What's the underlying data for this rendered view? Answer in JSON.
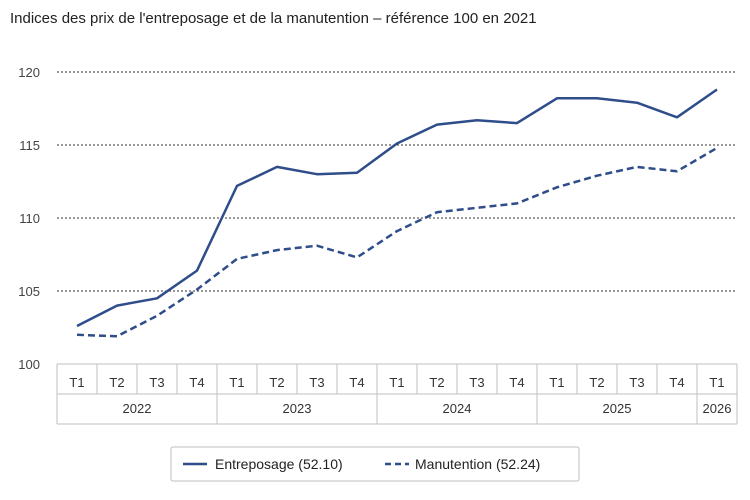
{
  "chart_data": {
    "type": "line",
    "title": "Indices des prix de l'entreposage et de la manutention – référence 100 en 2021",
    "xlabel": "",
    "ylabel": "",
    "ylim": [
      100,
      120
    ],
    "yticks": [
      100,
      105,
      110,
      115,
      120
    ],
    "grid": "horizontal-dashed",
    "legend_position": "bottom",
    "categories": [
      "T1",
      "T2",
      "T3",
      "T4",
      "T1",
      "T2",
      "T3",
      "T4",
      "T1",
      "T2",
      "T3",
      "T4",
      "T1",
      "T2",
      "T3",
      "T4",
      "T1"
    ],
    "years": [
      {
        "label": "2022",
        "quarters": 4
      },
      {
        "label": "2023",
        "quarters": 4
      },
      {
        "label": "2024",
        "quarters": 4
      },
      {
        "label": "2025",
        "quarters": 4
      },
      {
        "label": "2026",
        "quarters": 1
      }
    ],
    "series": [
      {
        "name": "Entreposage (52.10)",
        "style": "solid",
        "color": "#2e4d8a",
        "values": [
          102.6,
          104.0,
          104.5,
          106.4,
          112.2,
          113.5,
          113.0,
          113.1,
          115.1,
          116.4,
          116.7,
          116.5,
          118.2,
          118.2,
          117.9,
          116.9,
          118.8
        ]
      },
      {
        "name": "Manutention (52.24)",
        "style": "dashed",
        "color": "#2e4d8a",
        "values": [
          102.0,
          101.9,
          103.3,
          105.1,
          107.2,
          107.8,
          108.1,
          107.3,
          109.1,
          110.4,
          110.7,
          111.0,
          112.1,
          112.9,
          113.5,
          113.2,
          114.8
        ]
      }
    ]
  }
}
